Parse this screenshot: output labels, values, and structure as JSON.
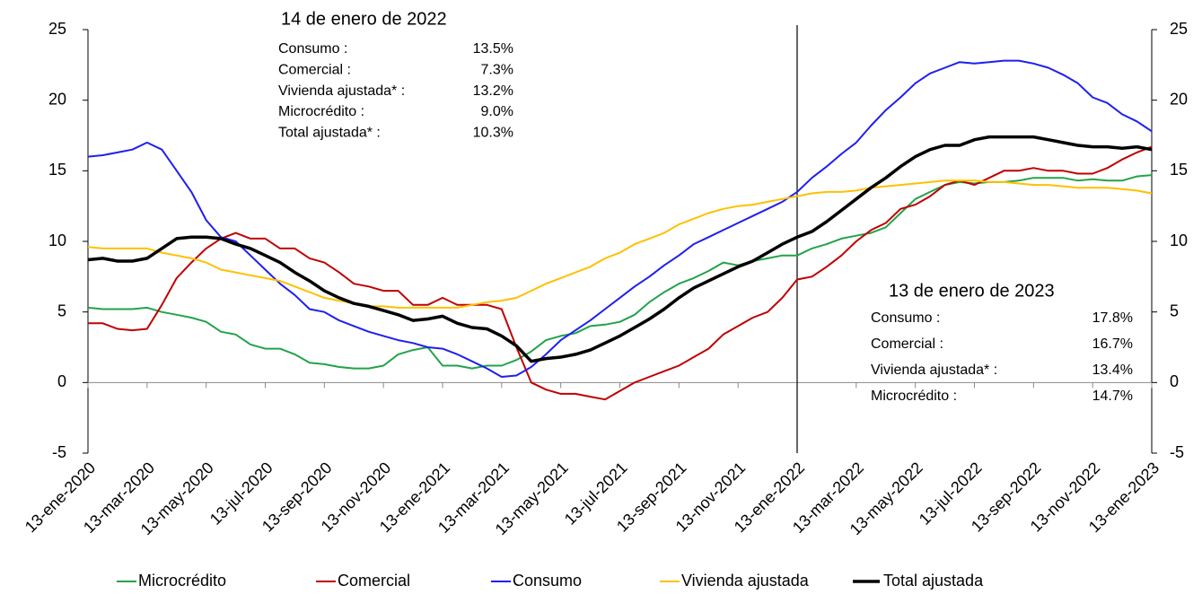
{
  "chart_data": {
    "type": "line",
    "categories": [
      "13-ene-2020",
      null,
      null,
      null,
      "13-mar-2020",
      null,
      null,
      null,
      "13-may-2020",
      null,
      null,
      null,
      "13-jul-2020",
      null,
      null,
      null,
      "13-sep-2020",
      null,
      null,
      null,
      "13-nov-2020",
      null,
      null,
      null,
      "13-ene-2021",
      null,
      null,
      null,
      "13-mar-2021",
      null,
      null,
      null,
      "13-may-2021",
      null,
      null,
      null,
      "13-jul-2021",
      null,
      null,
      null,
      "13-sep-2021",
      null,
      null,
      null,
      "13-nov-2021",
      null,
      null,
      null,
      "13-ene-2022",
      null,
      null,
      null,
      "13-mar-2022",
      null,
      null,
      null,
      "13-may-2022",
      null,
      null,
      null,
      "13-jul-2022",
      null,
      null,
      null,
      "13-sep-2022",
      null,
      null,
      null,
      "13-nov-2022",
      null,
      null,
      null,
      "13-ene-2023"
    ],
    "series": [
      {
        "name": "Microcrédito",
        "color": "#22a34a",
        "width": 2,
        "values": [
          5.3,
          5.2,
          5.2,
          5.2,
          5.3,
          5,
          4.8,
          4.6,
          4.3,
          3.6,
          3.4,
          2.7,
          2.4,
          2.4,
          2,
          1.4,
          1.3,
          1.1,
          1.0,
          1.0,
          1.2,
          2,
          2.3,
          2.5,
          1.2,
          1.2,
          1.0,
          1.2,
          1.2,
          1.6,
          2.2,
          3,
          3.3,
          3.5,
          4,
          4.1,
          4.3,
          4.8,
          5.7,
          6.4,
          7,
          7.4,
          7.9,
          8.5,
          8.3,
          8.6,
          8.8,
          9,
          9.0,
          9.5,
          9.8,
          10.2,
          10.4,
          10.6,
          11,
          12,
          13,
          13.5,
          14,
          14.2,
          14.1,
          14.2,
          14.2,
          14.3,
          14.5,
          14.5,
          14.5,
          14.3,
          14.4,
          14.3,
          14.3,
          14.6,
          14.7
        ]
      },
      {
        "name": "Comercial",
        "color": "#c00000",
        "width": 2,
        "values": [
          4.2,
          4.2,
          3.8,
          3.7,
          3.8,
          5.5,
          7.4,
          8.5,
          9.5,
          10.2,
          10.6,
          10.2,
          10.2,
          9.5,
          9.5,
          8.8,
          8.5,
          7.8,
          7,
          6.8,
          6.5,
          6.5,
          5.5,
          5.5,
          6,
          5.5,
          5.5,
          5.5,
          5.2,
          2.5,
          0,
          -0.5,
          -0.8,
          -0.8,
          -1,
          -1.2,
          -0.6,
          0,
          0.4,
          0.8,
          1.2,
          1.8,
          2.4,
          3.4,
          4,
          4.6,
          5,
          6,
          7.3,
          7.5,
          8.2,
          9,
          10,
          10.8,
          11.3,
          12.3,
          12.6,
          13.2,
          14,
          14.3,
          14,
          14.5,
          15,
          15,
          15.2,
          15,
          15,
          14.8,
          14.8,
          15.2,
          15.8,
          16.3,
          16.7
        ]
      },
      {
        "name": "Consumo",
        "color": "#1f1fef",
        "width": 2,
        "values": [
          16,
          16.1,
          16.3,
          16.5,
          17,
          16.5,
          15,
          13.5,
          11.5,
          10.3,
          10,
          9,
          8,
          7,
          6.2,
          5.2,
          5,
          4.4,
          4,
          3.6,
          3.3,
          3,
          2.8,
          2.5,
          2.4,
          2,
          1.5,
          1,
          0.4,
          0.5,
          1.1,
          2,
          3,
          3.7,
          4.4,
          5.2,
          6,
          6.8,
          7.5,
          8.3,
          9,
          9.8,
          10.3,
          10.8,
          11.3,
          11.8,
          12.3,
          12.8,
          13.5,
          14.5,
          15.3,
          16.2,
          17,
          18.2,
          19.3,
          20.2,
          21.2,
          21.9,
          22.3,
          22.7,
          22.6,
          22.7,
          22.8,
          22.8,
          22.6,
          22.3,
          21.8,
          21.2,
          20.2,
          19.8,
          19,
          18.5,
          17.8
        ]
      },
      {
        "name": "Vivienda ajustada",
        "color": "#ffc000",
        "width": 2,
        "values": [
          9.6,
          9.5,
          9.5,
          9.5,
          9.5,
          9.2,
          9,
          8.8,
          8.5,
          8,
          7.8,
          7.6,
          7.4,
          7.2,
          6.8,
          6.4,
          6,
          5.8,
          5.6,
          5.4,
          5.4,
          5.3,
          5.3,
          5.3,
          5.3,
          5.3,
          5.5,
          5.7,
          5.8,
          6,
          6.5,
          7,
          7.4,
          7.8,
          8.2,
          8.8,
          9.2,
          9.8,
          10.2,
          10.6,
          11.2,
          11.6,
          12,
          12.3,
          12.5,
          12.6,
          12.8,
          13,
          13.2,
          13.4,
          13.5,
          13.5,
          13.6,
          13.8,
          13.9,
          14,
          14.1,
          14.2,
          14.3,
          14.3,
          14.3,
          14.2,
          14.2,
          14.1,
          14,
          14,
          13.9,
          13.8,
          13.8,
          13.8,
          13.7,
          13.6,
          13.4
        ]
      },
      {
        "name": "Total ajustada",
        "color": "#000000",
        "width": 3.5,
        "values": [
          8.7,
          8.8,
          8.6,
          8.6,
          8.8,
          9.5,
          10.2,
          10.3,
          10.3,
          10.2,
          9.8,
          9.5,
          9,
          8.5,
          7.8,
          7.2,
          6.5,
          6,
          5.6,
          5.4,
          5.1,
          4.8,
          4.4,
          4.5,
          4.7,
          4.2,
          3.9,
          3.8,
          3.3,
          2.6,
          1.5,
          1.7,
          1.8,
          2,
          2.3,
          2.8,
          3.3,
          3.9,
          4.5,
          5.2,
          6,
          6.7,
          7.2,
          7.7,
          8.2,
          8.6,
          9.2,
          9.8,
          10.3,
          10.7,
          11.4,
          12.2,
          13,
          13.8,
          14.5,
          15.3,
          16,
          16.5,
          16.8,
          16.8,
          17.2,
          17.4,
          17.4,
          17.4,
          17.4,
          17.2,
          17,
          16.8,
          16.7,
          16.7,
          16.6,
          16.7,
          16.5
        ]
      }
    ],
    "ylim": [
      -5,
      25
    ],
    "yticks": [
      -5,
      0,
      5,
      10,
      15,
      20,
      25
    ],
    "y2lim": [
      -5,
      25
    ],
    "y2ticks": [
      -5,
      0,
      5,
      10,
      15,
      20,
      25
    ],
    "vertical_line": "13-ene-2022",
    "legend": "bottom",
    "annotations": [
      {
        "title": "14 de enero de 2022",
        "rows": [
          {
            "label": "Consumo :",
            "value": "13.5%"
          },
          {
            "label": "Comercial :",
            "value": "7.3%"
          },
          {
            "label": "Vivienda ajustada* :",
            "value": "13.2%"
          },
          {
            "label": "Microcrédito :",
            "value": "9.0%"
          },
          {
            "label": "Total ajustada* :",
            "value": "10.3%"
          }
        ]
      },
      {
        "title": "13 de enero de 2023",
        "rows": [
          {
            "label": "Consumo :",
            "value": "17.8%"
          },
          {
            "label": "Comercial :",
            "value": "16.7%"
          },
          {
            "label": "Vivienda ajustada* :",
            "value": "13.4%"
          },
          {
            "label": "Microcrédito :",
            "value": "14.7%"
          }
        ]
      }
    ]
  }
}
